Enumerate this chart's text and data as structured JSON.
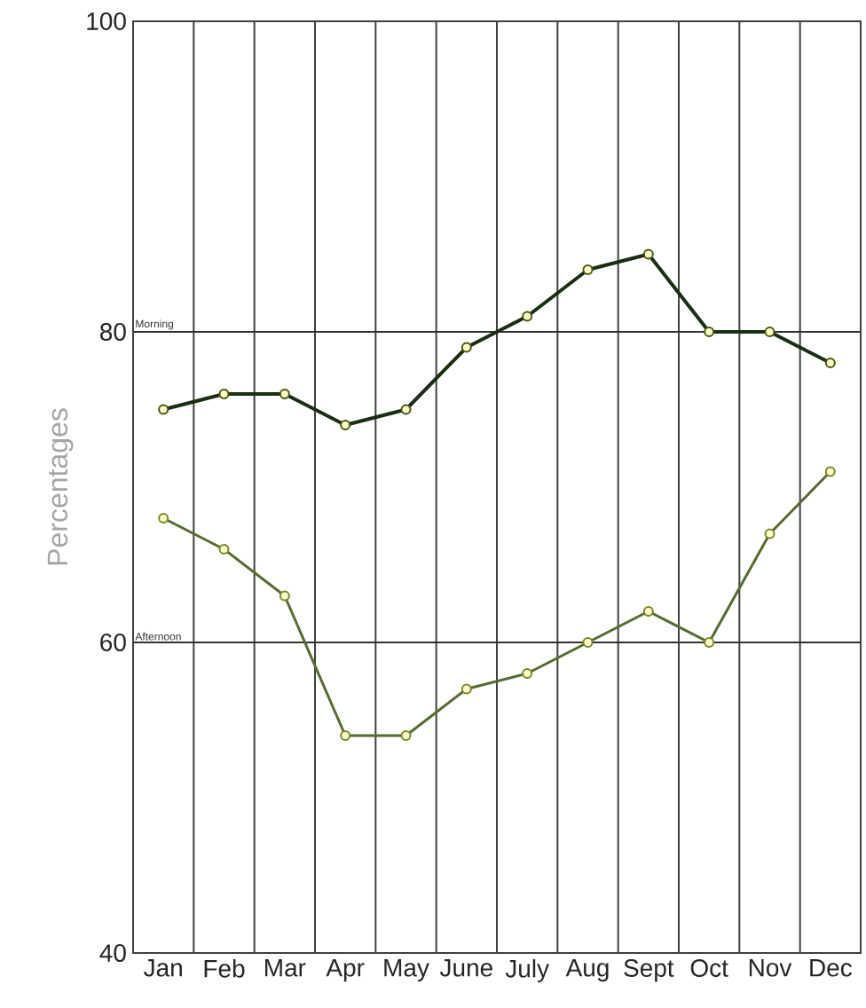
{
  "chart_data": {
    "type": "line",
    "ylabel": "Percentages",
    "categories": [
      "Jan",
      "Feb",
      "Mar",
      "Apr",
      "May",
      "June",
      "July",
      "Aug",
      "Sept",
      "Oct",
      "Nov",
      "Dec"
    ],
    "series": [
      {
        "color": "#1a2e14",
        "values": [
          75,
          76,
          76,
          74,
          75,
          79,
          81,
          84,
          85,
          80,
          80,
          78
        ]
      },
      {
        "color": "#556b2f",
        "values": [
          68,
          66,
          63,
          54,
          54,
          57,
          58,
          60,
          62,
          60,
          67,
          71
        ]
      }
    ],
    "ylim": [
      40,
      100
    ],
    "yticks": [
      40,
      60,
      80,
      100
    ],
    "grid": "x",
    "marker": "circle",
    "ref_lines": [
      {
        "axis": "y",
        "value": 80,
        "label": "Morning",
        "color": "#333333"
      },
      {
        "axis": "y",
        "value": 60,
        "label": "Afternoon",
        "color": "#333333"
      }
    ]
  }
}
